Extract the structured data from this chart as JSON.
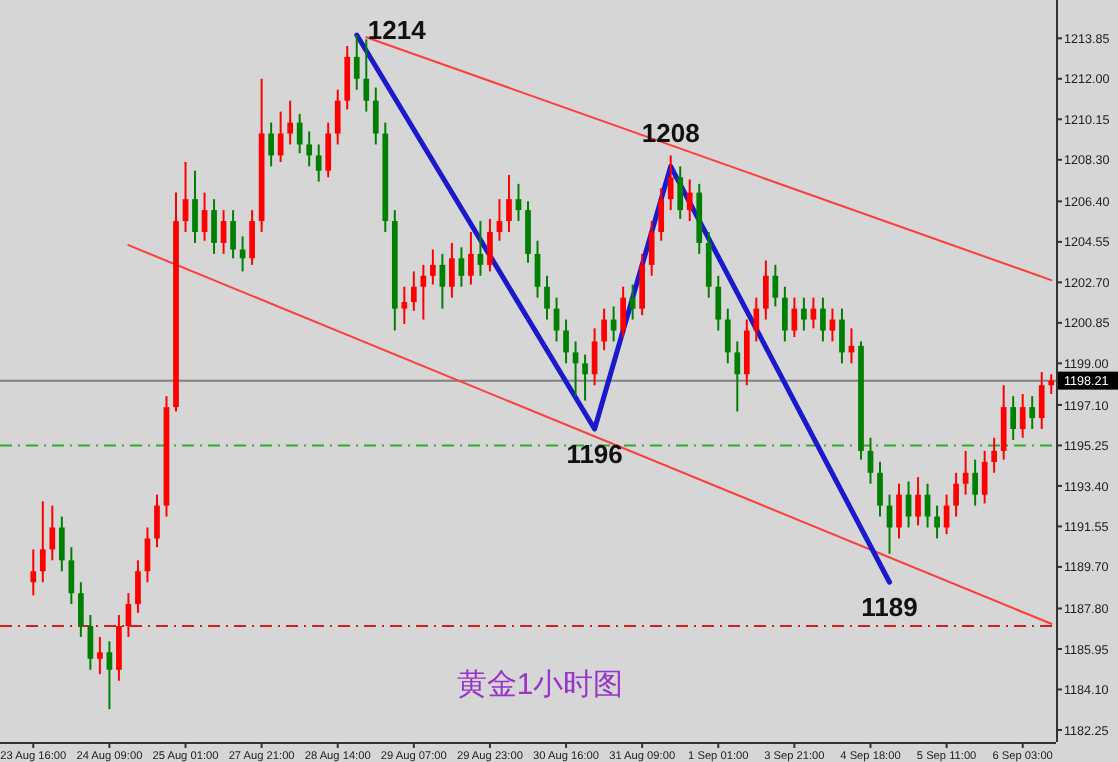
{
  "chart_data": {
    "type": "candlestick",
    "title": "黄金1小时图",
    "categories": [
      "23 Aug 16:00",
      null,
      null,
      null,
      null,
      null,
      null,
      null,
      "24 Aug 09:00",
      null,
      null,
      null,
      null,
      null,
      null,
      null,
      "25 Aug 01:00",
      null,
      null,
      null,
      null,
      null,
      null,
      null,
      "27 Aug 21:00",
      null,
      null,
      null,
      null,
      null,
      null,
      null,
      "28 Aug 14:00",
      null,
      null,
      null,
      null,
      null,
      null,
      null,
      "29 Aug 07:00",
      null,
      null,
      null,
      null,
      null,
      null,
      null,
      "29 Aug 23:00",
      null,
      null,
      null,
      null,
      null,
      null,
      null,
      "30 Aug 16:00",
      null,
      null,
      null,
      null,
      null,
      null,
      null,
      "31 Aug 09:00",
      null,
      null,
      null,
      null,
      null,
      null,
      null,
      "1 Sep 01:00",
      null,
      null,
      null,
      null,
      null,
      null,
      null,
      "3 Sep 21:00",
      null,
      null,
      null,
      null,
      null,
      null,
      null,
      "4 Sep 18:00",
      null,
      null,
      null,
      null,
      null,
      null,
      null,
      "5 Sep 11:00",
      null,
      null,
      null,
      null,
      null,
      null,
      null,
      "6 Sep 03:00",
      null,
      null,
      null
    ],
    "ohlc": [
      [
        1189.0,
        1190.5,
        1188.4,
        1189.5
      ],
      [
        1189.5,
        1192.7,
        1189.0,
        1190.5
      ],
      [
        1190.5,
        1192.5,
        1190.0,
        1191.5
      ],
      [
        1191.5,
        1192.0,
        1189.5,
        1190.0
      ],
      [
        1190.0,
        1190.6,
        1188.0,
        1188.5
      ],
      [
        1188.5,
        1189.0,
        1186.5,
        1187.0
      ],
      [
        1187.0,
        1187.5,
        1185.0,
        1185.5
      ],
      [
        1185.5,
        1186.5,
        1184.8,
        1185.8
      ],
      [
        1185.8,
        1186.3,
        1183.2,
        1185.0
      ],
      [
        1185.0,
        1187.5,
        1184.5,
        1187.0
      ],
      [
        1187.0,
        1188.5,
        1186.5,
        1188.0
      ],
      [
        1188.0,
        1190.0,
        1187.6,
        1189.5
      ],
      [
        1189.5,
        1191.5,
        1189.0,
        1191.0
      ],
      [
        1191.0,
        1193.0,
        1190.6,
        1192.5
      ],
      [
        1192.5,
        1197.5,
        1192.0,
        1197.0
      ],
      [
        1197.0,
        1206.8,
        1196.8,
        1205.5
      ],
      [
        1205.5,
        1208.2,
        1205.0,
        1206.5
      ],
      [
        1206.5,
        1207.8,
        1204.5,
        1205.0
      ],
      [
        1205.0,
        1206.8,
        1204.6,
        1206.0
      ],
      [
        1206.0,
        1206.5,
        1204.0,
        1204.5
      ],
      [
        1204.5,
        1206.0,
        1204.0,
        1205.5
      ],
      [
        1205.5,
        1206.0,
        1203.8,
        1204.2
      ],
      [
        1204.2,
        1204.8,
        1203.2,
        1203.8
      ],
      [
        1203.8,
        1206.0,
        1203.5,
        1205.5
      ],
      [
        1205.5,
        1212.0,
        1205.0,
        1209.5
      ],
      [
        1209.5,
        1210.0,
        1208.0,
        1208.5
      ],
      [
        1208.5,
        1210.5,
        1208.2,
        1209.5
      ],
      [
        1209.5,
        1211.0,
        1209.0,
        1210.0
      ],
      [
        1210.0,
        1210.4,
        1208.6,
        1209.0
      ],
      [
        1209.0,
        1209.6,
        1208.0,
        1208.5
      ],
      [
        1208.5,
        1209.0,
        1207.3,
        1207.8
      ],
      [
        1207.8,
        1210.0,
        1207.5,
        1209.5
      ],
      [
        1209.5,
        1211.5,
        1209.0,
        1211.0
      ],
      [
        1211.0,
        1213.5,
        1210.6,
        1213.0
      ],
      [
        1213.0,
        1214.0,
        1211.5,
        1212.0
      ],
      [
        1212.0,
        1213.8,
        1210.5,
        1211.0
      ],
      [
        1211.0,
        1211.6,
        1209.0,
        1209.5
      ],
      [
        1209.5,
        1210.0,
        1205.0,
        1205.5
      ],
      [
        1205.5,
        1206.0,
        1200.5,
        1201.5
      ],
      [
        1201.5,
        1202.5,
        1200.8,
        1201.8
      ],
      [
        1201.8,
        1203.2,
        1201.4,
        1202.5
      ],
      [
        1202.5,
        1203.5,
        1201.0,
        1203.0
      ],
      [
        1203.0,
        1204.2,
        1202.6,
        1203.5
      ],
      [
        1203.5,
        1204.0,
        1201.5,
        1202.5
      ],
      [
        1202.5,
        1204.5,
        1202.0,
        1203.8
      ],
      [
        1203.8,
        1204.3,
        1202.5,
        1203.0
      ],
      [
        1203.0,
        1205.0,
        1202.6,
        1204.0
      ],
      [
        1204.0,
        1205.5,
        1203.0,
        1203.5
      ],
      [
        1203.5,
        1205.6,
        1203.2,
        1205.0
      ],
      [
        1205.0,
        1206.5,
        1204.6,
        1205.5
      ],
      [
        1205.5,
        1207.6,
        1205.0,
        1206.5
      ],
      [
        1206.5,
        1207.2,
        1205.5,
        1206.0
      ],
      [
        1206.0,
        1206.4,
        1203.6,
        1204.0
      ],
      [
        1204.0,
        1204.6,
        1202.0,
        1202.5
      ],
      [
        1202.5,
        1203.0,
        1201.0,
        1201.5
      ],
      [
        1201.5,
        1202.0,
        1200.0,
        1200.5
      ],
      [
        1200.5,
        1201.0,
        1199.0,
        1199.5
      ],
      [
        1199.5,
        1200.0,
        1197.5,
        1199.0
      ],
      [
        1199.0,
        1199.4,
        1197.3,
        1198.5
      ],
      [
        1198.5,
        1200.6,
        1198.0,
        1200.0
      ],
      [
        1200.0,
        1201.5,
        1199.6,
        1201.0
      ],
      [
        1201.0,
        1201.6,
        1200.0,
        1200.5
      ],
      [
        1200.5,
        1202.5,
        1200.2,
        1202.0
      ],
      [
        1202.0,
        1202.6,
        1201.0,
        1201.5
      ],
      [
        1201.5,
        1204.0,
        1201.2,
        1203.5
      ],
      [
        1203.5,
        1205.5,
        1203.0,
        1205.0
      ],
      [
        1205.0,
        1207.0,
        1204.6,
        1206.5
      ],
      [
        1206.5,
        1208.5,
        1206.0,
        1207.5
      ],
      [
        1207.5,
        1208.0,
        1205.6,
        1206.0
      ],
      [
        1206.0,
        1207.4,
        1205.5,
        1206.8
      ],
      [
        1206.8,
        1207.2,
        1204.0,
        1204.5
      ],
      [
        1204.5,
        1205.0,
        1202.0,
        1202.5
      ],
      [
        1202.5,
        1203.0,
        1200.5,
        1201.0
      ],
      [
        1201.0,
        1201.5,
        1199.0,
        1199.5
      ],
      [
        1199.5,
        1200.0,
        1196.8,
        1198.5
      ],
      [
        1198.5,
        1201.0,
        1198.0,
        1200.5
      ],
      [
        1200.5,
        1202.0,
        1200.0,
        1201.5
      ],
      [
        1201.5,
        1203.7,
        1201.0,
        1203.0
      ],
      [
        1203.0,
        1203.5,
        1201.6,
        1202.0
      ],
      [
        1202.0,
        1202.5,
        1200.0,
        1200.5
      ],
      [
        1200.5,
        1202.0,
        1200.2,
        1201.5
      ],
      [
        1201.5,
        1202.0,
        1200.5,
        1201.0
      ],
      [
        1201.0,
        1202.0,
        1200.6,
        1201.5
      ],
      [
        1201.5,
        1202.0,
        1200.0,
        1200.5
      ],
      [
        1200.5,
        1201.5,
        1200.0,
        1201.0
      ],
      [
        1201.0,
        1201.5,
        1199.0,
        1199.5
      ],
      [
        1199.5,
        1200.6,
        1199.0,
        1199.8
      ],
      [
        1199.8,
        1200.0,
        1194.6,
        1195.0
      ],
      [
        1195.0,
        1195.6,
        1193.5,
        1194.0
      ],
      [
        1194.0,
        1194.5,
        1192.0,
        1192.5
      ],
      [
        1192.5,
        1193.0,
        1190.3,
        1191.5
      ],
      [
        1191.5,
        1193.5,
        1191.0,
        1193.0
      ],
      [
        1193.0,
        1193.6,
        1191.5,
        1192.0
      ],
      [
        1192.0,
        1193.8,
        1191.6,
        1193.0
      ],
      [
        1193.0,
        1193.5,
        1191.5,
        1192.0
      ],
      [
        1192.0,
        1192.5,
        1191.0,
        1191.5
      ],
      [
        1191.5,
        1193.0,
        1191.2,
        1192.5
      ],
      [
        1192.5,
        1194.0,
        1192.0,
        1193.5
      ],
      [
        1193.5,
        1195.0,
        1193.0,
        1194.0
      ],
      [
        1194.0,
        1194.6,
        1192.5,
        1193.0
      ],
      [
        1193.0,
        1195.0,
        1192.6,
        1194.5
      ],
      [
        1194.5,
        1195.6,
        1194.0,
        1195.0
      ],
      [
        1195.0,
        1198.0,
        1194.6,
        1197.0
      ],
      [
        1197.0,
        1197.5,
        1195.5,
        1196.0
      ],
      [
        1196.0,
        1197.6,
        1195.6,
        1197.0
      ],
      [
        1197.0,
        1197.5,
        1196.0,
        1196.5
      ],
      [
        1196.5,
        1198.6,
        1196.0,
        1198.0
      ],
      [
        1198.0,
        1198.5,
        1197.6,
        1198.21
      ]
    ],
    "colors": [
      "#ff0000",
      "#ff0000",
      "#ff0000",
      "#008000",
      "#008000",
      "#008000",
      "#008000",
      "#ff0000",
      "#008000",
      "#ff0000",
      "#ff0000",
      "#ff0000",
      "#ff0000",
      "#ff0000",
      "#ff0000",
      "#ff0000",
      "#ff0000",
      "#008000",
      "#ff0000",
      "#008000",
      "#ff0000",
      "#008000",
      "#008000",
      "#ff0000",
      "#ff0000",
      "#008000",
      "#ff0000",
      "#ff0000",
      "#008000",
      "#008000",
      "#008000",
      "#ff0000",
      "#ff0000",
      "#ff0000",
      "#008000",
      "#008000",
      "#008000",
      "#008000",
      "#008000",
      "#ff0000",
      "#ff0000",
      "#ff0000",
      "#ff0000",
      "#008000",
      "#ff0000",
      "#008000",
      "#ff0000",
      "#008000",
      "#ff0000",
      "#ff0000",
      "#ff0000",
      "#008000",
      "#008000",
      "#008000",
      "#008000",
      "#008000",
      "#008000",
      "#008000",
      "#008000",
      "#ff0000",
      "#ff0000",
      "#008000",
      "#ff0000",
      "#008000",
      "#ff0000",
      "#ff0000",
      "#ff0000",
      "#ff0000",
      "#008000",
      "#ff0000",
      "#008000",
      "#008000",
      "#008000",
      "#008000",
      "#008000",
      "#ff0000",
      "#ff0000",
      "#ff0000",
      "#008000",
      "#008000",
      "#ff0000",
      "#008000",
      "#ff0000",
      "#008000",
      "#ff0000",
      "#008000",
      "#ff0000",
      "#008000",
      "#008000",
      "#008000",
      "#008000",
      "#ff0000",
      "#008000",
      "#ff0000",
      "#008000",
      "#008000",
      "#ff0000",
      "#ff0000",
      "#ff0000",
      "#008000",
      "#ff0000",
      "#ff0000",
      "#ff0000",
      "#008000",
      "#ff0000",
      "#008000",
      "#ff0000",
      "#ff0000"
    ],
    "series": [
      {
        "type": "line",
        "color": "#ff3c3c",
        "values": [
          null,
          null,
          null,
          null,
          null,
          null,
          null,
          null,
          null,
          null,
          null,
          null,
          null,
          null,
          null,
          null,
          null,
          null,
          null,
          null,
          null,
          null,
          null,
          null,
          null,
          null,
          null,
          null,
          null,
          null,
          null,
          null,
          null,
          null,
          null,
          1213.9,
          null,
          null,
          null,
          null,
          null,
          null,
          null,
          null,
          null,
          null,
          null,
          null,
          null,
          null,
          null,
          null,
          null,
          null,
          null,
          null,
          null,
          null,
          null,
          null,
          null,
          null,
          null,
          null,
          null,
          null,
          null,
          null,
          null,
          null,
          null,
          null,
          null,
          null,
          null,
          null,
          null,
          null,
          null,
          null,
          null,
          null,
          null,
          null,
          null,
          null,
          null,
          null,
          null,
          null,
          null,
          null,
          null,
          null,
          null,
          null,
          null,
          null,
          null,
          null,
          null,
          null,
          null,
          null,
          null,
          null,
          null,
          1202.8
        ]
      },
      {
        "type": "line",
        "color": "#ff3c3c",
        "values": [
          null,
          null,
          null,
          null,
          null,
          null,
          null,
          null,
          null,
          null,
          1204.4,
          null,
          null,
          null,
          null,
          null,
          null,
          null,
          null,
          null,
          null,
          null,
          null,
          null,
          null,
          null,
          null,
          null,
          null,
          null,
          null,
          null,
          null,
          null,
          null,
          null,
          null,
          null,
          null,
          null,
          null,
          null,
          null,
          null,
          null,
          null,
          null,
          null,
          null,
          null,
          null,
          null,
          null,
          null,
          null,
          null,
          null,
          null,
          null,
          null,
          null,
          null,
          null,
          null,
          null,
          null,
          null,
          null,
          null,
          null,
          null,
          null,
          null,
          null,
          null,
          null,
          null,
          null,
          null,
          null,
          null,
          null,
          null,
          null,
          null,
          null,
          null,
          null,
          null,
          null,
          null,
          null,
          null,
          null,
          null,
          null,
          null,
          null,
          null,
          null,
          null,
          null,
          null,
          null,
          null,
          null,
          null,
          1187.1
        ]
      },
      {
        "type": "line",
        "color": "#1a1acc",
        "values": [
          null,
          null,
          null,
          null,
          null,
          null,
          null,
          null,
          null,
          null,
          null,
          null,
          null,
          null,
          null,
          null,
          null,
          null,
          null,
          null,
          null,
          null,
          null,
          null,
          null,
          null,
          null,
          null,
          null,
          null,
          null,
          null,
          null,
          null,
          1214,
          null,
          null,
          null,
          null,
          null,
          null,
          null,
          null,
          null,
          null,
          null,
          null,
          null,
          null,
          null,
          null,
          null,
          null,
          null,
          null,
          null,
          null,
          null,
          null,
          1196,
          null,
          null,
          null,
          null,
          null,
          null,
          null,
          1208,
          null,
          null,
          null,
          null,
          null,
          null,
          null,
          null,
          null,
          null,
          null,
          null,
          null,
          null,
          null,
          null,
          null,
          null,
          null,
          null,
          null,
          null,
          1189,
          null,
          null,
          null,
          null,
          null,
          null,
          null,
          null,
          null,
          null,
          null,
          null,
          null,
          null,
          null,
          null,
          null
        ]
      }
    ],
    "ylim": [
      1181.7,
      1215.6
    ],
    "yticks": [
      1213.85,
      {
        "value": 1212,
        "label": "1212.00"
      },
      1210.15,
      {
        "value": 1208.3,
        "label": "1208.30"
      },
      {
        "value": 1206.4,
        "label": "1206.40"
      },
      1204.55,
      {
        "value": 1202.7,
        "label": "1202.70"
      },
      1200.85,
      {
        "value": 1199,
        "label": "1199.00"
      },
      {
        "value": 1197.1,
        "label": "1197.10"
      },
      1195.25,
      {
        "value": 1193.4,
        "label": "1193.40"
      },
      1191.55,
      {
        "value": 1189.7,
        "label": "1189.70"
      },
      {
        "value": 1187.8,
        "label": "1187.80"
      },
      1185.95,
      {
        "value": 1184.1,
        "label": "1184.10"
      },
      1182.25
    ],
    "ref_lines": [
      {
        "axis": "y",
        "value": 1198.21,
        "label": "1198.21",
        "color": "#808080",
        "line_style": "solid"
      },
      {
        "axis": "y",
        "value": 1195.25,
        "color": "#33aa33",
        "line_style": "dashdot"
      },
      {
        "axis": "y",
        "value": 1187.0,
        "color": "#cc2222",
        "line_style": "dashdot"
      }
    ],
    "annotations": [
      "1214",
      "1196",
      "1208",
      "1189"
    ]
  }
}
